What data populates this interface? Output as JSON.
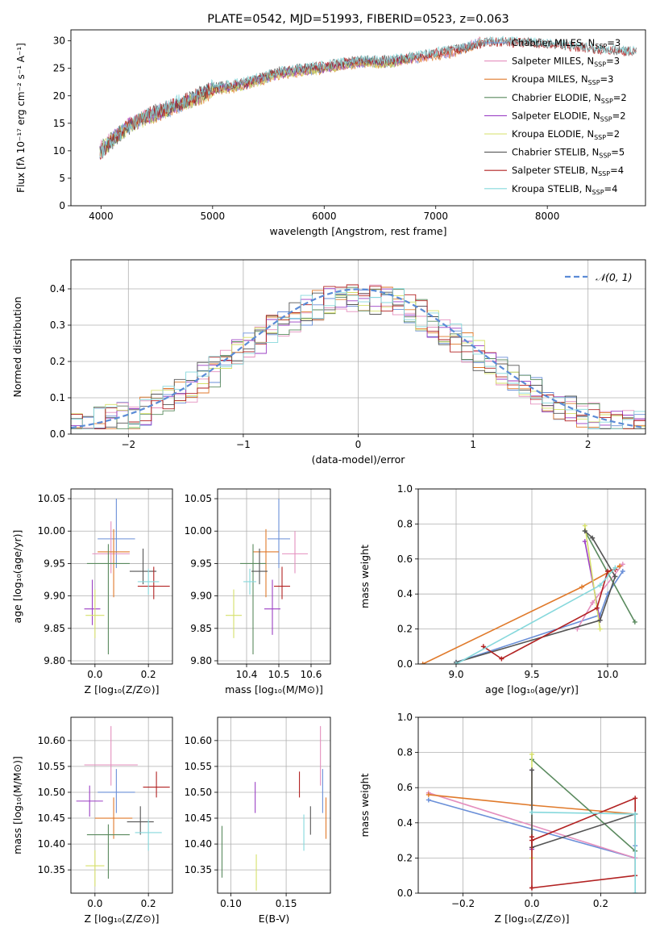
{
  "chart_data": [
    {
      "id": "spectrum",
      "type": "line",
      "title": "PLATE=0542, MJD=51993, FIBERID=0523, z=0.063",
      "xlabel": "wavelength [Angstrom, rest frame]",
      "ylabel": "Flux [fλ 10⁻¹⁷ erg cm⁻² s⁻¹ A⁻¹]",
      "xlim": [
        3730,
        8880
      ],
      "ylim": [
        0,
        32
      ],
      "xticks": [
        4000,
        5000,
        6000,
        7000,
        8000
      ],
      "yticks": [
        0,
        5,
        10,
        15,
        20,
        25,
        30
      ],
      "grid": false,
      "legend": "top-right",
      "series": [
        {
          "name": "Chabrier MILES, N",
          "sub": "SSP",
          "tail": "=3",
          "color": "#6a8fd8",
          "x": [
            3990,
            4200,
            4400,
            4800,
            5000,
            5300,
            5600,
            6000,
            6300,
            6600,
            6900,
            7200,
            7400
          ],
          "y": [
            10,
            14,
            16,
            19,
            21,
            22,
            24,
            25,
            26,
            26,
            27,
            28,
            30
          ]
        },
        {
          "name": "Salpeter MILES, N",
          "sub": "SSP",
          "tail": "=3",
          "color": "#e48fbe",
          "x": [
            3990,
            4200,
            4400,
            4800,
            5000,
            5300,
            5600,
            6000,
            6300,
            6600,
            6900,
            7200,
            7400
          ],
          "y": [
            10.3,
            14.2,
            16.3,
            19.2,
            21.2,
            22.2,
            24.1,
            25.2,
            26.1,
            26.2,
            27.1,
            28.1,
            30.2
          ]
        },
        {
          "name": "Kroupa MILES, N",
          "sub": "SSP",
          "tail": "=3",
          "color": "#e07a2b",
          "x": [
            3990,
            4200,
            4400,
            4800,
            5000,
            5300,
            5600,
            6000,
            6300,
            6600,
            6900,
            7200,
            7400
          ],
          "y": [
            9.8,
            13.9,
            15.8,
            18.8,
            20.8,
            21.8,
            23.8,
            24.8,
            25.8,
            25.9,
            26.8,
            27.8,
            29.8
          ]
        },
        {
          "name": "Chabrier ELODIE, N",
          "sub": "SSP",
          "tail": "=2",
          "color": "#5a8a5e",
          "x": [
            3990,
            4200,
            4400,
            4800,
            5000,
            5300,
            5600,
            6000,
            6300,
            6600,
            6800
          ],
          "y": [
            10.2,
            13.8,
            16.1,
            19.1,
            21.1,
            22.1,
            24.2,
            25.1,
            26.1,
            26.1,
            27
          ]
        },
        {
          "name": "Salpeter ELODIE, N",
          "sub": "SSP",
          "tail": "=2",
          "color": "#9b3fc4",
          "x": [
            3990,
            4200,
            4400,
            4800,
            5000,
            5300,
            5600,
            6000,
            6300,
            6600,
            6800
          ],
          "y": [
            10.1,
            14.1,
            16.0,
            19.0,
            21.0,
            22.0,
            24.0,
            25.0,
            26.0,
            26.0,
            26.9
          ]
        },
        {
          "name": "Kroupa ELODIE, N",
          "sub": "SSP",
          "tail": "=2",
          "color": "#d6e06a",
          "x": [
            3990,
            4200,
            4400,
            4800,
            5000,
            5300,
            5600,
            6000,
            6300,
            6600,
            6800
          ],
          "y": [
            9.9,
            13.7,
            15.9,
            18.9,
            20.9,
            21.9,
            23.9,
            24.9,
            25.9,
            25.9,
            26.8
          ]
        },
        {
          "name": "Chabrier STELIB, N",
          "sub": "SSP",
          "tail": "=5",
          "color": "#555555",
          "x": [
            3990,
            4200,
            4400,
            4800,
            5000,
            5300,
            5600,
            6000,
            6300,
            6600,
            6900,
            7200,
            7500,
            8000,
            8500,
            8800
          ],
          "y": [
            9.5,
            13.5,
            16.5,
            19.5,
            21.5,
            22.5,
            24.5,
            25.5,
            26.5,
            26.5,
            27.5,
            28.5,
            30,
            29.5,
            28.5,
            28
          ]
        },
        {
          "name": "Salpeter STELIB, N",
          "sub": "SSP",
          "tail": "=4",
          "color": "#b22222",
          "x": [
            3990,
            4200,
            4400,
            4800,
            5000,
            5300,
            5600,
            6000,
            6300,
            6600,
            6900,
            7200,
            7500,
            8000,
            8500,
            8800
          ],
          "y": [
            9.6,
            13.6,
            16.4,
            19.4,
            21.4,
            22.4,
            24.4,
            25.4,
            26.4,
            26.4,
            27.4,
            28.4,
            29.9,
            29.4,
            28.4,
            27.9
          ]
        },
        {
          "name": "Kroupa STELIB, N",
          "sub": "SSP",
          "tail": "=4",
          "color": "#86d8dc",
          "x": [
            3990,
            4200,
            4400,
            4800,
            5000,
            5300,
            5600,
            6000,
            6300,
            6600,
            6900,
            7200,
            7500,
            8000,
            8500,
            8800
          ],
          "y": [
            9.7,
            13.7,
            16.6,
            19.6,
            21.6,
            22.6,
            24.6,
            25.6,
            26.6,
            26.6,
            27.6,
            28.6,
            30.1,
            29.6,
            28.6,
            28.1
          ]
        }
      ]
    },
    {
      "id": "residuals",
      "type": "bar",
      "xlabel": "(data-model)/error",
      "ylabel": "Normed distribution",
      "xlim": [
        -2.5,
        2.5
      ],
      "ylim": [
        0,
        0.48
      ],
      "xticks": [
        -2,
        -1,
        0,
        1,
        2
      ],
      "yticks": [
        0.0,
        0.1,
        0.2,
        0.3,
        0.4
      ],
      "grid": true,
      "legend": "top-right",
      "gaussian_label": "𝒩(0, 1)",
      "gaussian_color": "#5b8bd6"
    },
    {
      "id": "age-vs-Z",
      "type": "scatter",
      "xlabel": "Z [log₁₀(Z/Z⊙)]",
      "ylabel": "age  [log₁₀(age/yr)]",
      "xlim": [
        -0.09,
        0.29
      ],
      "ylim": [
        9.795,
        10.065
      ],
      "xticks": [
        0.0,
        0.2
      ],
      "yticks": [
        9.8,
        9.85,
        9.9,
        9.95,
        10.0,
        10.05
      ],
      "grid": true,
      "points": [
        {
          "x": 0.08,
          "y": 9.988,
          "xerr": 0.07,
          "yerr_lo": 0.045,
          "yerr_hi": 0.062,
          "color": "#6a8fd8"
        },
        {
          "x": 0.06,
          "y": 9.965,
          "xerr": 0.07,
          "yerr_lo": 0.03,
          "yerr_hi": 0.05,
          "color": "#e48fbe"
        },
        {
          "x": 0.07,
          "y": 9.968,
          "xerr": 0.06,
          "yerr_lo": 0.07,
          "yerr_hi": 0.035,
          "color": "#e07a2b"
        },
        {
          "x": 0.05,
          "y": 9.95,
          "xerr": 0.08,
          "yerr_lo": 0.14,
          "yerr_hi": 0.03,
          "color": "#5a8a5e"
        },
        {
          "x": -0.01,
          "y": 9.88,
          "xerr": 0.03,
          "yerr_lo": 0.025,
          "yerr_hi": 0.045,
          "color": "#9b3fc4"
        },
        {
          "x": 0.0,
          "y": 9.87,
          "xerr": 0.035,
          "yerr_lo": 0.035,
          "yerr_hi": 0.04,
          "color": "#d6e06a"
        },
        {
          "x": 0.18,
          "y": 9.938,
          "xerr": 0.05,
          "yerr_lo": 0.02,
          "yerr_hi": 0.035,
          "color": "#555555"
        },
        {
          "x": 0.22,
          "y": 9.915,
          "xerr": 0.06,
          "yerr_lo": 0.02,
          "yerr_hi": 0.03,
          "color": "#b22222"
        },
        {
          "x": 0.2,
          "y": 9.922,
          "xerr": 0.04,
          "yerr_lo": 0.02,
          "yerr_hi": 0.02,
          "color": "#86d8dc"
        }
      ]
    },
    {
      "id": "age-vs-mass",
      "type": "scatter",
      "xlabel": "mass [log₁₀(M/M⊙)]",
      "ylabel": "",
      "xlim": [
        10.31,
        10.66
      ],
      "ylim": [
        9.795,
        10.065
      ],
      "xticks": [
        10.4,
        10.5,
        10.6
      ],
      "yticks": [
        9.8,
        9.85,
        9.9,
        9.95,
        10.0,
        10.05
      ],
      "grid": true,
      "points": [
        {
          "x": 10.5,
          "y": 9.988,
          "xerr": 0.035,
          "yerr_lo": 0.045,
          "yerr_hi": 0.062,
          "color": "#6a8fd8"
        },
        {
          "x": 10.55,
          "y": 9.965,
          "xerr": 0.04,
          "yerr_lo": 0.03,
          "yerr_hi": 0.035,
          "color": "#e48fbe"
        },
        {
          "x": 10.46,
          "y": 9.968,
          "xerr": 0.04,
          "yerr_lo": 0.07,
          "yerr_hi": 0.035,
          "color": "#e07a2b"
        },
        {
          "x": 10.42,
          "y": 9.95,
          "xerr": 0.04,
          "yerr_lo": 0.14,
          "yerr_hi": 0.03,
          "color": "#5a8a5e"
        },
        {
          "x": 10.48,
          "y": 9.88,
          "xerr": 0.025,
          "yerr_lo": 0.04,
          "yerr_hi": 0.045,
          "color": "#9b3fc4"
        },
        {
          "x": 10.36,
          "y": 9.87,
          "xerr": 0.025,
          "yerr_lo": 0.035,
          "yerr_hi": 0.04,
          "color": "#d6e06a"
        },
        {
          "x": 10.44,
          "y": 9.938,
          "xerr": 0.025,
          "yerr_lo": 0.02,
          "yerr_hi": 0.035,
          "color": "#555555"
        },
        {
          "x": 10.51,
          "y": 9.915,
          "xerr": 0.025,
          "yerr_lo": 0.02,
          "yerr_hi": 0.03,
          "color": "#b22222"
        },
        {
          "x": 10.41,
          "y": 9.922,
          "xerr": 0.02,
          "yerr_lo": 0.02,
          "yerr_hi": 0.02,
          "color": "#86d8dc"
        }
      ]
    },
    {
      "id": "mass-weight-vs-age",
      "type": "line",
      "xlabel": "age  [log₁₀(age/yr)]",
      "ylabel": "mass weight",
      "xlim": [
        8.75,
        10.25
      ],
      "ylim": [
        0,
        1.0
      ],
      "xticks": [
        9.0,
        9.5,
        10.0
      ],
      "yticks": [
        0.0,
        0.2,
        0.4,
        0.6,
        0.8,
        1.0
      ],
      "grid": true,
      "series": [
        {
          "color": "#6a8fd8",
          "x": [
            9.0,
            9.95,
            10.0,
            10.1
          ],
          "y": [
            0.01,
            0.28,
            0.4,
            0.53
          ]
        },
        {
          "color": "#e48fbe",
          "x": [
            9.8,
            9.9,
            10.1
          ],
          "y": [
            0.2,
            0.35,
            0.57
          ]
        },
        {
          "color": "#e07a2b",
          "x": [
            8.78,
            9.83,
            10.08
          ],
          "y": [
            0.0,
            0.44,
            0.56
          ]
        },
        {
          "color": "#5a8a5e",
          "x": [
            9.85,
            10.18
          ],
          "y": [
            0.76,
            0.24
          ]
        },
        {
          "color": "#9b3fc4",
          "x": [
            9.85,
            9.95
          ],
          "y": [
            0.7,
            0.25
          ]
        },
        {
          "color": "#d6e06a",
          "x": [
            9.85,
            9.95
          ],
          "y": [
            0.79,
            0.2
          ]
        },
        {
          "color": "#555555",
          "x": [
            9.0,
            9.95,
            10.05,
            9.9,
            9.85
          ],
          "y": [
            0.01,
            0.25,
            0.5,
            0.72,
            0.76
          ]
        },
        {
          "color": "#b22222",
          "x": [
            9.18,
            9.3,
            9.93,
            10.0,
            10.05
          ],
          "y": [
            0.1,
            0.03,
            0.32,
            0.53,
            0.54
          ]
        },
        {
          "color": "#86d8dc",
          "x": [
            9.0,
            9.95,
            10.05
          ],
          "y": [
            0.0,
            0.45,
            0.55
          ]
        }
      ]
    },
    {
      "id": "mass-vs-Z",
      "type": "scatter",
      "xlabel": "Z [log₁₀(Z/Z⊙)]",
      "ylabel": "mass [log₁₀(M/M⊙)]",
      "xlim": [
        -0.09,
        0.29
      ],
      "ylim": [
        10.305,
        10.645
      ],
      "xticks": [
        0.0,
        0.2
      ],
      "yticks": [
        10.35,
        10.4,
        10.45,
        10.5,
        10.55,
        10.6
      ],
      "grid": true,
      "points": [
        {
          "x": 0.08,
          "y": 10.5,
          "xerr": 0.07,
          "yerr_lo": 0.04,
          "yerr_hi": 0.045,
          "color": "#6a8fd8"
        },
        {
          "x": 0.06,
          "y": 10.553,
          "xerr": 0.1,
          "yerr_lo": 0.04,
          "yerr_hi": 0.075,
          "color": "#e48fbe"
        },
        {
          "x": 0.07,
          "y": 10.45,
          "xerr": 0.07,
          "yerr_lo": 0.04,
          "yerr_hi": 0.04,
          "color": "#e07a2b"
        },
        {
          "x": 0.05,
          "y": 10.418,
          "xerr": 0.08,
          "yerr_lo": 0.085,
          "yerr_hi": 0.02,
          "color": "#5a8a5e"
        },
        {
          "x": -0.02,
          "y": 10.483,
          "xerr": 0.05,
          "yerr_lo": 0.03,
          "yerr_hi": 0.03,
          "color": "#9b3fc4"
        },
        {
          "x": 0.0,
          "y": 10.358,
          "xerr": 0.035,
          "yerr_lo": 0.04,
          "yerr_hi": 0.03,
          "color": "#d6e06a"
        },
        {
          "x": 0.17,
          "y": 10.443,
          "xerr": 0.05,
          "yerr_lo": 0.025,
          "yerr_hi": 0.03,
          "color": "#555555"
        },
        {
          "x": 0.23,
          "y": 10.51,
          "xerr": 0.05,
          "yerr_lo": 0.02,
          "yerr_hi": 0.03,
          "color": "#b22222"
        },
        {
          "x": 0.2,
          "y": 10.422,
          "xerr": 0.05,
          "yerr_lo": 0.035,
          "yerr_hi": 0.025,
          "color": "#86d8dc"
        }
      ]
    },
    {
      "id": "mass-vs-ebv",
      "type": "scatter",
      "xlabel": "E(B-V)",
      "ylabel": "",
      "xlim": [
        0.088,
        0.19
      ],
      "ylim": [
        10.305,
        10.645
      ],
      "xticks": [
        0.1,
        0.15
      ],
      "xtick_labels": [
        "0.10",
        "0.15"
      ],
      "yticks": [
        10.35,
        10.4,
        10.45,
        10.5,
        10.55,
        10.6
      ],
      "grid": true,
      "points": [
        {
          "x": 0.183,
          "y": 10.5,
          "yerr_lo": 0.04,
          "yerr_hi": 0.045,
          "color": "#6a8fd8"
        },
        {
          "x": 0.181,
          "y": 10.553,
          "yerr_lo": 0.04,
          "yerr_hi": 0.075,
          "color": "#e48fbe"
        },
        {
          "x": 0.186,
          "y": 10.45,
          "yerr_lo": 0.04,
          "yerr_hi": 0.04,
          "color": "#e07a2b"
        },
        {
          "x": 0.092,
          "y": 10.385,
          "yerr_lo": 0.05,
          "yerr_hi": 0.05,
          "color": "#5a8a5e"
        },
        {
          "x": 0.122,
          "y": 10.49,
          "yerr_lo": 0.03,
          "yerr_hi": 0.03,
          "color": "#9b3fc4"
        },
        {
          "x": 0.123,
          "y": 10.34,
          "yerr_lo": 0.03,
          "yerr_hi": 0.04,
          "color": "#d6e06a"
        },
        {
          "x": 0.172,
          "y": 10.443,
          "yerr_lo": 0.025,
          "yerr_hi": 0.03,
          "color": "#555555"
        },
        {
          "x": 0.162,
          "y": 10.51,
          "yerr_lo": 0.02,
          "yerr_hi": 0.03,
          "color": "#b22222"
        },
        {
          "x": 0.166,
          "y": 10.422,
          "yerr_lo": 0.035,
          "yerr_hi": 0.035,
          "color": "#86d8dc"
        }
      ]
    },
    {
      "id": "mass-weight-vs-Z",
      "type": "line",
      "xlabel": "Z [log₁₀(Z/Z⊙)]",
      "ylabel": "mass weight",
      "xlim": [
        -0.33,
        0.33
      ],
      "ylim": [
        0,
        1.0
      ],
      "xticks": [
        -0.2,
        0.0,
        0.2
      ],
      "yticks": [
        0.0,
        0.2,
        0.4,
        0.6,
        0.8,
        1.0
      ],
      "grid": true,
      "series": [
        {
          "color": "#6a8fd8",
          "x": [
            -0.3,
            0.3,
            0.3
          ],
          "y": [
            0.53,
            0.2,
            0.27
          ]
        },
        {
          "color": "#e48fbe",
          "x": [
            -0.3,
            0.3
          ],
          "y": [
            0.57,
            0.2
          ]
        },
        {
          "color": "#e07a2b",
          "x": [
            -0.3,
            0.0,
            0.3
          ],
          "y": [
            0.56,
            0.5,
            0.45
          ]
        },
        {
          "color": "#5a8a5e",
          "x": [
            0.0,
            0.3,
            0.3
          ],
          "y": [
            0.76,
            0.24,
            0.45
          ]
        },
        {
          "color": "#9b3fc4",
          "x": [
            0.0,
            0.0
          ],
          "y": [
            0.7,
            0.25
          ]
        },
        {
          "color": "#d6e06a",
          "x": [
            0.0,
            0.0
          ],
          "y": [
            0.79,
            0.2
          ]
        },
        {
          "color": "#555555",
          "x": [
            0.0,
            0.0,
            0.3
          ],
          "y": [
            0.7,
            0.26,
            0.45
          ]
        },
        {
          "color": "#b22222",
          "x": [
            0.0,
            0.0,
            0.3,
            0.3,
            0.0,
            0.0
          ],
          "y": [
            0.32,
            0.03,
            0.1,
            0.54,
            0.3,
            0.03
          ]
        },
        {
          "color": "#86d8dc",
          "x": [
            0.0,
            0.3,
            0.3
          ],
          "y": [
            0.46,
            0.45,
            0.0
          ]
        }
      ]
    }
  ]
}
